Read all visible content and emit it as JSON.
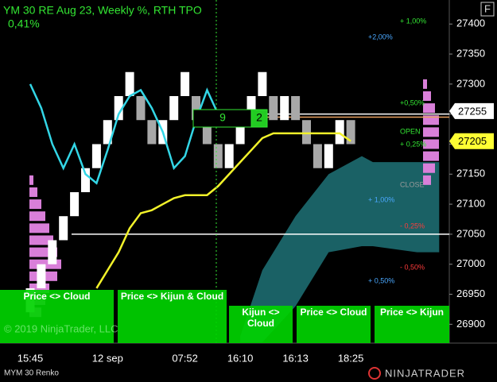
{
  "chart_data": {
    "type": "renko",
    "title": "YM 30 RE  Aug 23, Weekly %, RTH TPO",
    "subtitle": "0,41%",
    "badge": "F",
    "ylim": [
      26870,
      27440
    ],
    "yticks": [
      26900,
      26950,
      27000,
      27050,
      27100,
      27150,
      27200,
      27250,
      27300,
      27350,
      27400
    ],
    "categories": [
      "15:45",
      null,
      null,
      null,
      null,
      null,
      null,
      "12 sep",
      null,
      null,
      null,
      null,
      null,
      null,
      "07:52",
      null,
      null,
      null,
      null,
      "16:10",
      null,
      null,
      null,
      null,
      "16:13",
      null,
      null,
      null,
      null,
      "18:25"
    ],
    "open": [
      26920,
      26960,
      27000,
      27040,
      27080,
      27120,
      27160,
      27200,
      27240,
      27280,
      27280,
      27240,
      27200,
      27240,
      27280,
      27280,
      27240,
      27200,
      27160,
      27200,
      27240,
      27280,
      27280,
      27240,
      27280,
      27240,
      27200,
      27160,
      27200,
      27240
    ],
    "close": [
      26960,
      27000,
      27040,
      27080,
      27120,
      27160,
      27200,
      27240,
      27280,
      27320,
      27240,
      27200,
      27240,
      27280,
      27320,
      27240,
      27200,
      27160,
      27200,
      27240,
      27280,
      27320,
      27240,
      27280,
      27240,
      27200,
      27160,
      27200,
      27240,
      27200
    ],
    "up_color": "#ffffff",
    "down_color": "#a8a8a8",
    "series": [
      {
        "color": "#33d6e6",
        "values": [
          27300,
          27260,
          27200,
          27160,
          27200,
          27150,
          27135,
          27190,
          27250,
          27280,
          27290,
          27260,
          27220,
          27160,
          27180,
          27240,
          27290,
          27250,
          null,
          null,
          null,
          null,
          null,
          null,
          null,
          null,
          null,
          null,
          null,
          null
        ]
      },
      {
        "color": "#f2f22a",
        "values": [
          null,
          null,
          null,
          null,
          null,
          null,
          26960,
          26990,
          27020,
          27060,
          27085,
          27090,
          27100,
          27110,
          27115,
          27115,
          27115,
          27130,
          27150,
          27170,
          27190,
          27210,
          27218,
          27218,
          27218,
          27218,
          27218,
          27218,
          27218,
          27205
        ]
      }
    ],
    "cloud": {
      "color": "#1d6b70",
      "x": [
        19,
        21,
        24,
        27,
        30,
        31,
        35,
        37
      ],
      "upper": [
        26880,
        26990,
        27080,
        27150,
        27180,
        27170,
        27170,
        27170
      ],
      "lower": [
        26870,
        26870,
        26930,
        27020,
        27030,
        27030,
        27020,
        27020
      ]
    },
    "profile_left": {
      "color": "#d97fd9",
      "levels": [
        26920,
        26940,
        26960,
        26980,
        27000,
        27020,
        27040,
        27060,
        27080,
        27100,
        27120,
        27140
      ],
      "values": [
        3,
        4,
        5,
        7,
        8,
        7,
        6,
        5,
        4,
        3,
        2,
        1
      ]
    },
    "profile_right": {
      "color": "#d97fd9",
      "levels": [
        27140,
        27160,
        27180,
        27200,
        27220,
        27240,
        27260,
        27280,
        27300
      ],
      "values": [
        2,
        3,
        4,
        4,
        4,
        4,
        3,
        2,
        1
      ]
    },
    "levels": [
      {
        "value": 27050,
        "color": "#ffffff"
      },
      {
        "value": 27250,
        "color": "#ffffff"
      },
      {
        "value": 27245,
        "color": "#e8a060"
      }
    ],
    "price_tags": [
      {
        "value": 27255,
        "color": "#ffffff"
      },
      {
        "value": 27205,
        "color": "#ffff33"
      }
    ],
    "counter": [
      9,
      2
    ],
    "annotations": [
      {
        "text": "+ 1,00%",
        "color": "#33e633"
      },
      {
        "text": "+2,00%",
        "color": "#4aa8ff"
      },
      {
        "text": "+0,50%",
        "color": "#33e633"
      },
      {
        "text": "OPEN",
        "color": "#33e633"
      },
      {
        "text": "+ 0,25%",
        "color": "#33e633"
      },
      {
        "text": "CLOSE",
        "color": "#9a9a9a"
      },
      {
        "text": "+ 1,00%",
        "color": "#4aa8ff"
      },
      {
        "text": "- 0,25%",
        "color": "#ff3b3b"
      },
      {
        "text": "- 0,50%",
        "color": "#ff3b3b"
      },
      {
        "text": "+ 0,50%",
        "color": "#4aa8ff"
      }
    ],
    "buttons": [
      "Price <> Cloud",
      "Price <> Kijun & Cloud",
      "Kijun <> Cloud",
      "Price <> Cloud",
      "Price <> Kijun"
    ],
    "watermark": "© 2019 NinjaTrader, LLC",
    "instrument": "MYM 30 Renko",
    "brand": "NINJATRADER"
  }
}
